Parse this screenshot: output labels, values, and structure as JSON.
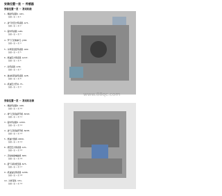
{
  "header": {
    "title": "安装位置一览 － 传感器"
  },
  "sections": [
    {
      "heading": "安装位置一览 － 发动机舱",
      "items": [
        {
          "label": "1 - 爆震传感器1 -G61-",
          "sub": "装配一览 → 页 1"
        },
        {
          "label": "2 - 进气管压力传感器 -G71-",
          "sub": "装配一览 → 页 2"
        },
        {
          "label": "3 - 霍尔传感器 -G40-",
          "sub": "装配一览 → 页 3"
        },
        {
          "label": "4 - 节气门控制单元 -J338-",
          "sub": "装配一览 → 页 4"
        },
        {
          "label": "5 - 冷却液温度传感器 -G62-",
          "sub": "装配一览 → 页 5"
        },
        {
          "label": "6 - 燃油压力传感器 -G247-",
          "sub": "装配一览 → 页 6"
        },
        {
          "label": "7 - 氧传感器 -G39-",
          "sub": "装配一览 → 页 7"
        },
        {
          "label": "8 - 发动机转速传感器 -G28-",
          "sub": "装配一览 → 页 8"
        },
        {
          "label": "9 - 机油压力开关 -F1-",
          "sub": "装配一览 → 页 9"
        }
      ]
    },
    {
      "heading": "安装位置一览 － 发动机右侧",
      "items": [
        {
          "label": "1 - 爆震传感器2 -G66-",
          "sub": "装配一览 → 页 10"
        },
        {
          "label": "2 - 排气凸轮轴调节阀 -N318-",
          "sub": "装配一览 → 页 11"
        },
        {
          "label": "3 - 霍尔传感器3 -G300-",
          "sub": "装配一览 → 页 12"
        },
        {
          "label": "4 - 进气凸轮轴调节阀 -N205-",
          "sub": "装配一览 → 页 13"
        },
        {
          "label": "5 - 燃油计量阀 -N290-",
          "sub": "装配一览 → 页 14"
        },
        {
          "label": "6 - 增压压力传感器 -G31-",
          "sub": "装配一览 → 页 15"
        },
        {
          "label": "7 - 活性炭罐电磁阀 -N80-",
          "sub": "装配一览 → 页 16"
        },
        {
          "label": "8 - 废气涡轮增压器 -N75-",
          "sub": "装配一览 → 页 17"
        },
        {
          "label": "9 - 机油油位传感器 -G266-",
          "sub": "装配一览 → 页 18"
        },
        {
          "label": "10 - 冷却液泵 -V51-",
          "sub": "装配一览 → 页 19"
        }
      ]
    }
  ],
  "watermark": "www.88qc.com"
}
